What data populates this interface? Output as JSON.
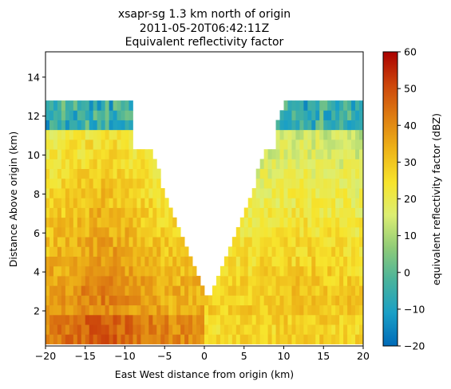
{
  "chart_data": {
    "type": "heatmap",
    "title_lines": [
      "xsapr-sg 1.3 km north of origin",
      "2011-05-20T06:42:11Z",
      "Equivalent reflectivity factor"
    ],
    "xlabel": "East West distance from origin (km)",
    "ylabel": "Distance Above origin (km)",
    "xlim": [
      -20,
      20
    ],
    "ylim": [
      0.2,
      15.3
    ],
    "x_ticks": [
      -20,
      -15,
      -10,
      -5,
      0,
      5,
      10,
      15,
      20
    ],
    "x_tick_labels": [
      "−20",
      "−15",
      "−10",
      "−5",
      "0",
      "5",
      "10",
      "15",
      "20"
    ],
    "y_ticks": [
      2,
      4,
      6,
      8,
      10,
      12,
      14
    ],
    "y_tick_labels": [
      "2",
      "4",
      "6",
      "8",
      "10",
      "12",
      "14"
    ],
    "colorbar": {
      "label": "equivalent reflectivity factor (dBZ)",
      "range": [
        -20,
        60
      ],
      "ticks": [
        -20,
        -10,
        0,
        10,
        20,
        30,
        40,
        50,
        60
      ],
      "tick_labels": [
        "−20",
        "−10",
        "0",
        "10",
        "20",
        "30",
        "40",
        "50",
        "60"
      ],
      "colormap": "HomeyerRainbow",
      "colors": [
        "#006ab8",
        "#1a9fc6",
        "#49b39c",
        "#8fcb78",
        "#dcee72",
        "#f7e42c",
        "#eeb418",
        "#de7e12",
        "#cc450b",
        "#a90000"
      ]
    },
    "field": {
      "description_units": "dBZ",
      "x_extent": [
        -20,
        20
      ],
      "dx_km": 0.5,
      "z_bottom_km": 0.3,
      "dz_km": 0.5,
      "data_top_max_km": 12.7,
      "notch_center_km": 0.5,
      "notch_bottom_km": 2.3,
      "notch_slope": 1.0
    }
  }
}
